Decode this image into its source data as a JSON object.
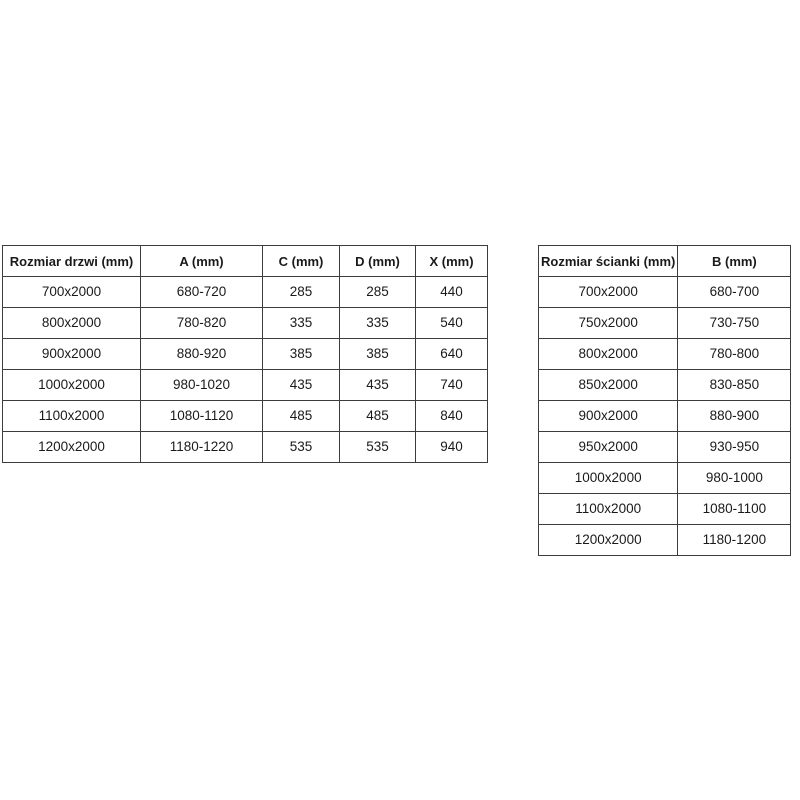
{
  "page": {
    "background_color": "#ffffff",
    "text_color": "#1a1a1a",
    "border_color": "#3c3c3c"
  },
  "tables": {
    "doors": {
      "name": "door-dimensions-table",
      "headers": [
        "Rozmiar drzwi (mm)",
        "A (mm)",
        "C (mm)",
        "D (mm)",
        "X (mm)"
      ],
      "rows": [
        [
          "700x2000",
          "680-720",
          "285",
          "285",
          "440"
        ],
        [
          "800x2000",
          "780-820",
          "335",
          "335",
          "540"
        ],
        [
          "900x2000",
          "880-920",
          "385",
          "385",
          "640"
        ],
        [
          "1000x2000",
          "980-1020",
          "435",
          "435",
          "740"
        ],
        [
          "1100x2000",
          "1080-1120",
          "485",
          "485",
          "840"
        ],
        [
          "1200x2000",
          "1180-1220",
          "535",
          "535",
          "940"
        ]
      ]
    },
    "walls": {
      "name": "wall-dimensions-table",
      "headers": [
        "Rozmiar ścianki (mm)",
        "B (mm)"
      ],
      "rows": [
        [
          "700x2000",
          "680-700"
        ],
        [
          "750x2000",
          "730-750"
        ],
        [
          "800x2000",
          "780-800"
        ],
        [
          "850x2000",
          "830-850"
        ],
        [
          "900x2000",
          "880-900"
        ],
        [
          "950x2000",
          "930-950"
        ],
        [
          "1000x2000",
          "980-1000"
        ],
        [
          "1100x2000",
          "1080-1100"
        ],
        [
          "1200x2000",
          "1180-1200"
        ]
      ]
    }
  }
}
